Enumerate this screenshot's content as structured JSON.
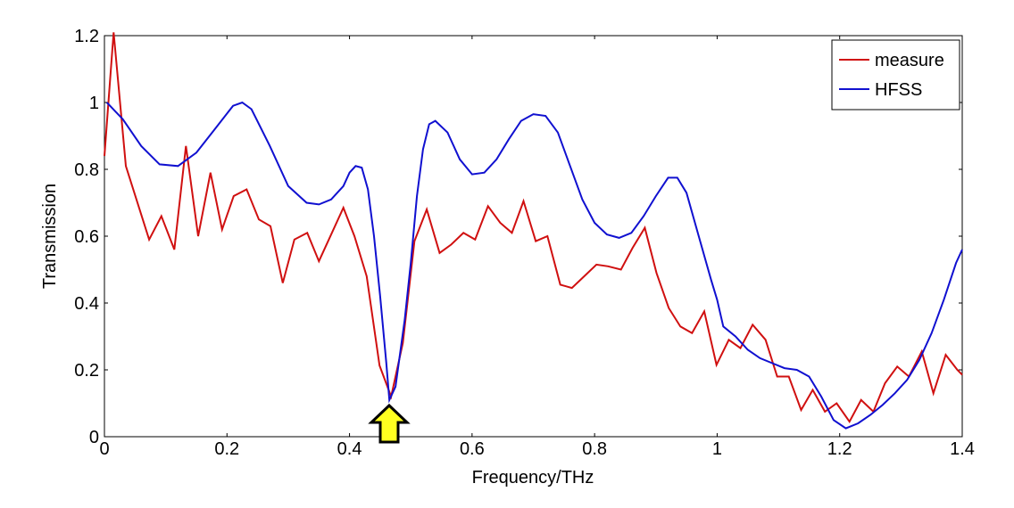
{
  "chart_data": {
    "type": "line",
    "x_label": "Frequency/THz",
    "y_label": "Transmission",
    "xlim": [
      0,
      1.4
    ],
    "ylim": [
      0,
      1.2
    ],
    "xticks": [
      0,
      0.2,
      0.4,
      0.6,
      0.8,
      1,
      1.2,
      1.4
    ],
    "yticks": [
      0,
      0.2,
      0.4,
      0.6,
      0.8,
      1,
      1.2
    ],
    "grid": false,
    "legend": "upper right",
    "series": [
      {
        "name": "measure",
        "color": "#d01010",
        "x": [
          0,
          0.015,
          0.035,
          0.073,
          0.093,
          0.114,
          0.133,
          0.153,
          0.173,
          0.192,
          0.211,
          0.232,
          0.252,
          0.271,
          0.291,
          0.31,
          0.331,
          0.35,
          0.39,
          0.408,
          0.428,
          0.449,
          0.468,
          0.487,
          0.506,
          0.526,
          0.547,
          0.566,
          0.586,
          0.605,
          0.626,
          0.646,
          0.665,
          0.684,
          0.704,
          0.723,
          0.744,
          0.763,
          0.783,
          0.803,
          0.822,
          0.843,
          0.862,
          0.882,
          0.901,
          0.921,
          0.94,
          0.959,
          0.979,
          0.999,
          1.019,
          1.038,
          1.058,
          1.079,
          1.098,
          1.117,
          1.137,
          1.156,
          1.176,
          1.195,
          1.216,
          1.235,
          1.255,
          1.274,
          1.294,
          1.313,
          1.334,
          1.353,
          1.373,
          1.392,
          1.4
        ],
        "values": [
          0.84,
          1.21,
          0.81,
          0.59,
          0.66,
          0.56,
          0.87,
          0.6,
          0.79,
          0.62,
          0.72,
          0.74,
          0.65,
          0.63,
          0.46,
          0.59,
          0.61,
          0.525,
          0.685,
          0.6,
          0.48,
          0.213,
          0.12,
          0.28,
          0.585,
          0.68,
          0.55,
          0.575,
          0.61,
          0.59,
          0.69,
          0.64,
          0.61,
          0.705,
          0.585,
          0.6,
          0.455,
          0.445,
          0.48,
          0.515,
          0.51,
          0.5,
          0.565,
          0.625,
          0.49,
          0.385,
          0.33,
          0.31,
          0.375,
          0.215,
          0.29,
          0.265,
          0.335,
          0.29,
          0.18,
          0.18,
          0.08,
          0.14,
          0.075,
          0.1,
          0.045,
          0.11,
          0.075,
          0.16,
          0.21,
          0.18,
          0.255,
          0.13,
          0.245,
          0.2,
          0.185
        ]
      },
      {
        "name": "HFSS",
        "color": "#1010d0",
        "x": [
          0.004,
          0.03,
          0.06,
          0.09,
          0.12,
          0.15,
          0.18,
          0.21,
          0.225,
          0.24,
          0.27,
          0.3,
          0.33,
          0.35,
          0.37,
          0.39,
          0.4,
          0.41,
          0.42,
          0.43,
          0.44,
          0.45,
          0.46,
          0.465,
          0.475,
          0.49,
          0.5,
          0.51,
          0.52,
          0.53,
          0.54,
          0.56,
          0.58,
          0.6,
          0.62,
          0.64,
          0.66,
          0.68,
          0.7,
          0.72,
          0.74,
          0.76,
          0.78,
          0.8,
          0.82,
          0.84,
          0.86,
          0.88,
          0.9,
          0.92,
          0.935,
          0.95,
          0.97,
          0.99,
          1.0,
          1.01,
          1.03,
          1.05,
          1.07,
          1.09,
          1.11,
          1.13,
          1.15,
          1.17,
          1.19,
          1.21,
          1.23,
          1.25,
          1.27,
          1.29,
          1.31,
          1.33,
          1.35,
          1.37,
          1.39,
          1.4
        ],
        "values": [
          1.0,
          0.95,
          0.87,
          0.815,
          0.81,
          0.85,
          0.92,
          0.99,
          1.0,
          0.98,
          0.87,
          0.75,
          0.7,
          0.695,
          0.71,
          0.75,
          0.79,
          0.81,
          0.805,
          0.74,
          0.6,
          0.42,
          0.22,
          0.11,
          0.15,
          0.35,
          0.52,
          0.72,
          0.86,
          0.935,
          0.945,
          0.91,
          0.83,
          0.785,
          0.79,
          0.83,
          0.89,
          0.945,
          0.965,
          0.96,
          0.91,
          0.81,
          0.71,
          0.64,
          0.605,
          0.595,
          0.61,
          0.66,
          0.72,
          0.775,
          0.775,
          0.73,
          0.6,
          0.47,
          0.41,
          0.33,
          0.3,
          0.26,
          0.235,
          0.22,
          0.205,
          0.2,
          0.18,
          0.12,
          0.05,
          0.025,
          0.04,
          0.065,
          0.095,
          0.13,
          0.17,
          0.23,
          0.31,
          0.41,
          0.52,
          0.56
        ]
      }
    ]
  }
}
